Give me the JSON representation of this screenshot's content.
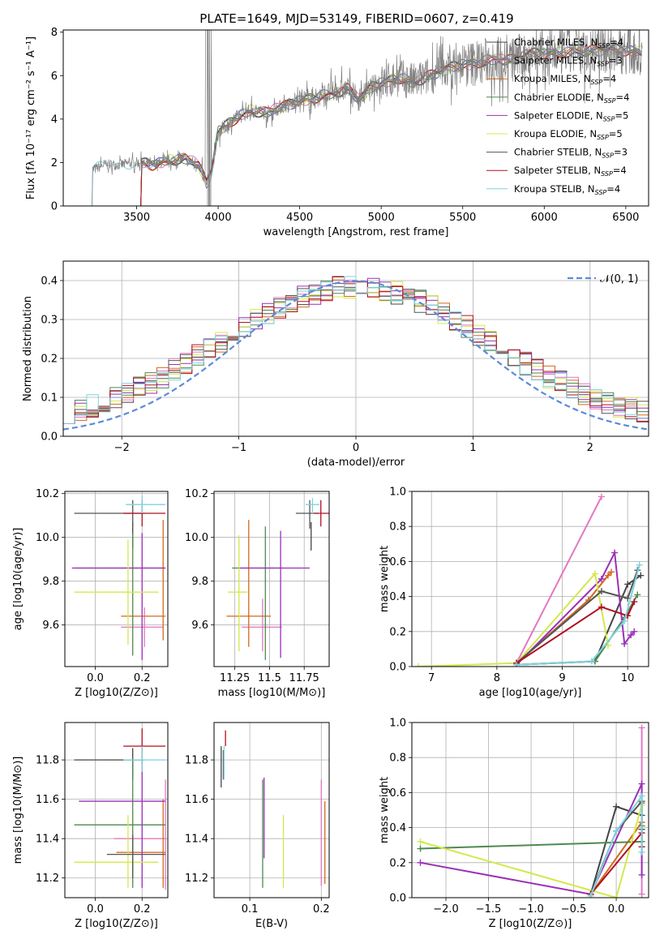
{
  "figure": {
    "title": "PLATE=1649, MJD=53149, FIBERID=0607, z=0.419"
  },
  "series": [
    {
      "name": "Chabrier MILES, N",
      "sub": "SSP",
      "tail": "=4",
      "color": "#444444"
    },
    {
      "name": "Salpeter MILES, N",
      "sub": "SSP",
      "tail": "=3",
      "color": "#e377c2"
    },
    {
      "name": "Kroupa MILES, N",
      "sub": "SSP",
      "tail": "=4",
      "color": "#d2691e"
    },
    {
      "name": "Chabrier ELODIE, N",
      "sub": "SSP",
      "tail": "=4",
      "color": "#4e8a4e"
    },
    {
      "name": "Salpeter ELODIE, N",
      "sub": "SSP",
      "tail": "=5",
      "color": "#9b30b8"
    },
    {
      "name": "Kroupa ELODIE, N",
      "sub": "SSP",
      "tail": "=5",
      "color": "#d4e84a"
    },
    {
      "name": "Chabrier STELIB, N",
      "sub": "SSP",
      "tail": "=3",
      "color": "#555555"
    },
    {
      "name": "Salpeter STELIB, N",
      "sub": "SSP",
      "tail": "=4",
      "color": "#b01020"
    },
    {
      "name": "Kroupa STELIB, N",
      "sub": "SSP",
      "tail": "=4",
      "color": "#7fd3e0"
    }
  ],
  "chart_data": [
    {
      "id": "spectrum",
      "type": "line",
      "xlabel": "wavelength [Angstrom, rest frame]",
      "ylabel": "Flux [fλ 10⁻¹⁷ erg cm⁻² s⁻¹ A⁻¹]",
      "xlim": [
        3050,
        6640
      ],
      "ylim": [
        0,
        8.1
      ],
      "xticks": [
        3500,
        4000,
        4500,
        5000,
        5500,
        6000,
        6500
      ],
      "yticks": [
        0,
        2,
        4,
        6,
        8
      ],
      "data_color": "#808080",
      "data_start": 3220,
      "knots": [
        [
          3220,
          1.6
        ],
        [
          3300,
          1.9
        ],
        [
          3400,
          1.9
        ],
        [
          3500,
          2.0
        ],
        [
          3600,
          1.9
        ],
        [
          3700,
          2.1
        ],
        [
          3800,
          2.2
        ],
        [
          3880,
          1.9
        ],
        [
          3930,
          1.0
        ],
        [
          3960,
          1.6
        ],
        [
          4000,
          3.4
        ],
        [
          4100,
          4.0
        ],
        [
          4200,
          4.4
        ],
        [
          4300,
          4.3
        ],
        [
          4400,
          4.6
        ],
        [
          4500,
          4.8
        ],
        [
          4600,
          5.0
        ],
        [
          4700,
          5.2
        ],
        [
          4800,
          5.4
        ],
        [
          4860,
          4.9
        ],
        [
          4950,
          5.5
        ],
        [
          5100,
          5.9
        ],
        [
          5200,
          5.7
        ],
        [
          5300,
          6.0
        ],
        [
          5400,
          6.3
        ],
        [
          5500,
          6.5
        ],
        [
          5600,
          6.6
        ],
        [
          5700,
          6.8
        ],
        [
          5800,
          6.7
        ],
        [
          5900,
          7.0
        ],
        [
          6000,
          7.0
        ],
        [
          6200,
          7.1
        ],
        [
          6400,
          7.2
        ],
        [
          6600,
          7.1
        ]
      ],
      "model_start": 3520,
      "legend": "top-right"
    },
    {
      "id": "residuals",
      "type": "line",
      "xlabel": "(data-model)/error",
      "ylabel": "Normed distribution",
      "xlim": [
        -2.5,
        2.5
      ],
      "ylim": [
        0,
        0.45
      ],
      "xticks": [
        -2,
        -1,
        0,
        1,
        2
      ],
      "yticks": [
        0.0,
        0.1,
        0.2,
        0.3,
        0.4
      ],
      "reference": {
        "label": "𝒩(0, 1)",
        "mean": 0,
        "sigma": 1,
        "color": "#5b8bd6"
      },
      "bin_width": 0.1
    },
    {
      "id": "age-vs-Z",
      "type": "scatter",
      "xlabel": "Z [log10(Z/Z⊙)]",
      "ylabel": "age  [log10(age/yr)]",
      "xlim": [
        -0.13,
        0.31
      ],
      "ylim": [
        9.41,
        10.21
      ],
      "xticks": [
        0.0,
        0.2
      ],
      "yticks": [
        9.6,
        9.8,
        10.0,
        10.2
      ],
      "points": [
        {
          "s": 0,
          "x": 0.16,
          "xe": [
            0.16,
            0.16
          ],
          "y": 10.01,
          "ye": [
            9.95,
            10.07
          ]
        },
        {
          "s": 1,
          "x": 0.21,
          "xe": [
            0.11,
            0.29
          ],
          "y": 9.59,
          "ye": [
            9.5,
            9.68
          ]
        },
        {
          "s": 2,
          "x": 0.29,
          "xe": [
            0.11,
            0.3
          ],
          "y": 9.64,
          "ye": [
            9.53,
            10.08
          ]
        },
        {
          "s": 3,
          "x": 0.16,
          "xe": [
            -0.09,
            0.3
          ],
          "y": 9.86,
          "ye": [
            9.46,
            10.02
          ]
        },
        {
          "s": 4,
          "x": 0.2,
          "xe": [
            -0.1,
            0.3
          ],
          "y": 9.86,
          "ye": [
            9.44,
            10.02
          ]
        },
        {
          "s": 5,
          "x": 0.14,
          "xe": [
            -0.09,
            0.27
          ],
          "y": 9.75,
          "ye": [
            9.51,
            9.99
          ]
        },
        {
          "s": 6,
          "x": 0.16,
          "xe": [
            -0.09,
            0.21
          ],
          "y": 10.11,
          "ye": [
            10.05,
            10.17
          ]
        },
        {
          "s": 7,
          "x": 0.2,
          "xe": [
            0.12,
            0.3
          ],
          "y": 10.11,
          "ye": [
            10.05,
            10.17
          ]
        },
        {
          "s": 8,
          "x": 0.2,
          "xe": [
            0.13,
            0.3
          ],
          "y": 10.15,
          "ye": [
            10.11,
            10.19
          ]
        }
      ]
    },
    {
      "id": "age-vs-mass",
      "type": "scatter",
      "xlabel": "mass [log10(M/M⊙)]",
      "ylabel": "",
      "xlim": [
        11.1,
        11.93
      ],
      "ylim": [
        9.41,
        10.21
      ],
      "xticks": [
        11.25,
        11.5,
        11.75
      ],
      "yticks": [
        9.6,
        9.8,
        10.0,
        10.2
      ],
      "points": [
        {
          "s": 0,
          "x": 11.8,
          "xe": [
            11.8,
            11.8
          ],
          "y": 10.01,
          "ye": [
            9.94,
            10.07
          ]
        },
        {
          "s": 1,
          "x": 11.45,
          "xe": [
            11.3,
            11.59
          ],
          "y": 9.59,
          "ye": [
            9.48,
            9.72
          ]
        },
        {
          "s": 2,
          "x": 11.35,
          "xe": [
            11.19,
            11.51
          ],
          "y": 9.64,
          "ye": [
            9.5,
            10.08
          ]
        },
        {
          "s": 3,
          "x": 11.47,
          "xe": [
            11.23,
            11.6
          ],
          "y": 9.86,
          "ye": [
            9.44,
            10.05
          ]
        },
        {
          "s": 4,
          "x": 11.58,
          "xe": [
            11.28,
            11.79
          ],
          "y": 9.86,
          "ye": [
            9.45,
            10.03
          ]
        },
        {
          "s": 5,
          "x": 11.28,
          "xe": [
            11.2,
            11.34
          ],
          "y": 9.75,
          "ye": [
            9.48,
            10.01
          ]
        },
        {
          "s": 6,
          "x": 11.79,
          "xe": [
            11.69,
            11.85
          ],
          "y": 10.11,
          "ye": [
            10.04,
            10.17
          ]
        },
        {
          "s": 7,
          "x": 11.87,
          "xe": [
            11.82,
            11.93
          ],
          "y": 10.11,
          "ye": [
            10.05,
            10.17
          ]
        },
        {
          "s": 8,
          "x": 11.81,
          "xe": [
            11.76,
            11.86
          ],
          "y": 10.15,
          "ye": [
            10.11,
            10.18
          ]
        }
      ]
    },
    {
      "id": "weight-vs-age",
      "type": "line",
      "xlabel": "age  [log10(age/yr)]",
      "ylabel": "mass weight",
      "xlim": [
        6.7,
        10.32
      ],
      "ylim": [
        0,
        1.0
      ],
      "xticks": [
        7,
        8,
        9,
        10
      ],
      "yticks": [
        0.0,
        0.2,
        0.4,
        0.6,
        0.8,
        1.0
      ],
      "series": [
        {
          "s": 0,
          "x": [
            8.3,
            9.5,
            10.0,
            10.2
          ],
          "y": [
            0.01,
            0.03,
            0.47,
            0.52
          ]
        },
        {
          "s": 1,
          "x": [
            8.3,
            9.6
          ],
          "y": [
            0.02,
            0.97
          ]
        },
        {
          "s": 2,
          "x": [
            8.3,
            9.4,
            9.7,
            9.75
          ],
          "y": [
            0.02,
            0.38,
            0.52,
            0.54
          ]
        },
        {
          "s": 3,
          "x": [
            8.3,
            9.5,
            9.95,
            10.15
          ],
          "y": [
            0.01,
            0.03,
            0.28,
            0.41
          ]
        },
        {
          "s": 4,
          "x": [
            8.3,
            9.6,
            9.8,
            9.95,
            10.05,
            10.1
          ],
          "y": [
            0.01,
            0.5,
            0.65,
            0.13,
            0.18,
            0.2
          ]
        },
        {
          "s": 5,
          "x": [
            6.8,
            8.3,
            9.5,
            9.7
          ],
          "y": [
            0.0,
            0.02,
            0.53,
            0.12
          ]
        },
        {
          "s": 6,
          "x": [
            8.3,
            9.6,
            10.0,
            10.15
          ],
          "y": [
            0.02,
            0.43,
            0.39,
            0.55
          ]
        },
        {
          "s": 7,
          "x": [
            8.3,
            9.6,
            10.0,
            10.1
          ],
          "y": [
            0.02,
            0.34,
            0.29,
            0.37
          ]
        },
        {
          "s": 8,
          "x": [
            8.3,
            9.45,
            9.95,
            10.18
          ],
          "y": [
            0.01,
            0.03,
            0.26,
            0.58
          ]
        }
      ]
    },
    {
      "id": "mass-vs-Z",
      "type": "scatter",
      "xlabel": "Z [log10(Z/Z⊙)]",
      "ylabel": "mass [log10(M/M⊙)]",
      "xlim": [
        -0.13,
        0.31
      ],
      "ylim": [
        11.1,
        11.99
      ],
      "xticks": [
        0.0,
        0.2
      ],
      "yticks": [
        11.2,
        11.4,
        11.6,
        11.8
      ],
      "points": [
        {
          "s": 0,
          "x": 0.16,
          "xe": [
            -0.09,
            0.21
          ],
          "y": 11.8,
          "ye": [
            11.7,
            11.86
          ]
        },
        {
          "s": 1,
          "x": 0.3,
          "xe": [
            0.08,
            0.3
          ],
          "y": 11.4,
          "ye": [
            11.14,
            11.7
          ]
        },
        {
          "s": 2,
          "x": 0.29,
          "xe": [
            0.09,
            0.3
          ],
          "y": 11.33,
          "ye": [
            11.15,
            11.6
          ]
        },
        {
          "s": 3,
          "x": 0.16,
          "xe": [
            -0.09,
            0.3
          ],
          "y": 11.47,
          "ye": [
            11.15,
            11.8
          ]
        },
        {
          "s": 4,
          "x": 0.2,
          "xe": [
            -0.07,
            0.3
          ],
          "y": 11.59,
          "ye": [
            11.15,
            11.8
          ]
        },
        {
          "s": 5,
          "x": 0.14,
          "xe": [
            -0.09,
            0.27
          ],
          "y": 11.28,
          "ye": [
            11.15,
            11.52
          ]
        },
        {
          "s": 6,
          "x": 0.16,
          "xe": [
            0.05,
            0.3
          ],
          "y": 11.32,
          "ye": [
            11.2,
            11.42
          ]
        },
        {
          "s": 7,
          "x": 0.2,
          "xe": [
            0.12,
            0.3
          ],
          "y": 11.87,
          "ye": [
            11.78,
            11.96
          ]
        },
        {
          "s": 8,
          "x": 0.2,
          "xe": [
            0.12,
            0.3
          ],
          "y": 11.8,
          "ye": [
            11.74,
            11.87
          ]
        }
      ]
    },
    {
      "id": "mass-vs-EBV",
      "type": "scatter",
      "xlabel": "E(B-V)",
      "ylabel": "",
      "xlim": [
        0.05,
        0.211
      ],
      "ylim": [
        11.1,
        11.99
      ],
      "xticks": [
        0.1,
        0.2
      ],
      "yticks": [
        11.2,
        11.4,
        11.6,
        11.8
      ],
      "points": [
        {
          "s": 0,
          "x": 0.06,
          "ye": [
            11.66,
            11.87
          ]
        },
        {
          "s": 1,
          "x": 0.2,
          "ye": [
            11.16,
            11.7
          ]
        },
        {
          "s": 2,
          "x": 0.205,
          "ye": [
            11.17,
            11.59
          ]
        },
        {
          "s": 3,
          "x": 0.118,
          "ye": [
            11.15,
            11.7
          ]
        },
        {
          "s": 4,
          "x": 0.12,
          "ye": [
            11.3,
            11.71
          ]
        },
        {
          "s": 5,
          "x": 0.147,
          "ye": [
            11.15,
            11.52
          ]
        },
        {
          "s": 6,
          "x": 0.063,
          "ye": [
            11.7,
            11.85
          ]
        },
        {
          "s": 7,
          "x": 0.066,
          "ye": [
            11.87,
            11.95
          ]
        },
        {
          "s": 8,
          "x": 0.064,
          "ye": [
            11.7,
            11.87
          ]
        }
      ]
    },
    {
      "id": "weight-vs-Z",
      "type": "line",
      "xlabel": "Z [log10(Z/Z⊙)]",
      "ylabel": "mass weight",
      "xlim": [
        -2.4,
        0.38
      ],
      "ylim": [
        0,
        1.0
      ],
      "xticks": [
        -2.0,
        -1.5,
        -1.0,
        -0.5,
        0.0
      ],
      "yticks": [
        0.0,
        0.2,
        0.4,
        0.6,
        0.8,
        1.0
      ],
      "series": [
        {
          "s": 0,
          "x": [
            -0.3,
            0.0,
            0.3
          ],
          "y": [
            0.02,
            0.52,
            0.47
          ]
        },
        {
          "s": 1,
          "x": [
            0.3,
            0.3
          ],
          "y": [
            0.02,
            0.97
          ]
        },
        {
          "s": 2,
          "x": [
            -0.3,
            0.3,
            0.3
          ],
          "y": [
            0.02,
            0.43,
            0.54
          ]
        },
        {
          "s": 3,
          "x": [
            -2.3,
            0.3,
            0.3
          ],
          "y": [
            0.28,
            0.32,
            0.41
          ]
        },
        {
          "s": 4,
          "x": [
            -2.3,
            -0.3,
            0.3,
            0.3
          ],
          "y": [
            0.2,
            0.02,
            0.65,
            0.13
          ]
        },
        {
          "s": 5,
          "x": [
            -2.3,
            0.0,
            0.3
          ],
          "y": [
            0.32,
            0.0,
            0.53
          ]
        },
        {
          "s": 6,
          "x": [
            -0.3,
            0.0,
            0.3,
            0.3
          ],
          "y": [
            0.02,
            0.38,
            0.55,
            0.39
          ]
        },
        {
          "s": 7,
          "x": [
            -0.3,
            0.3,
            0.3
          ],
          "y": [
            0.02,
            0.37,
            0.29
          ]
        },
        {
          "s": 8,
          "x": [
            -0.3,
            0.0,
            0.3,
            0.3
          ],
          "y": [
            0.01,
            0.38,
            0.58,
            0.26
          ]
        }
      ]
    }
  ]
}
